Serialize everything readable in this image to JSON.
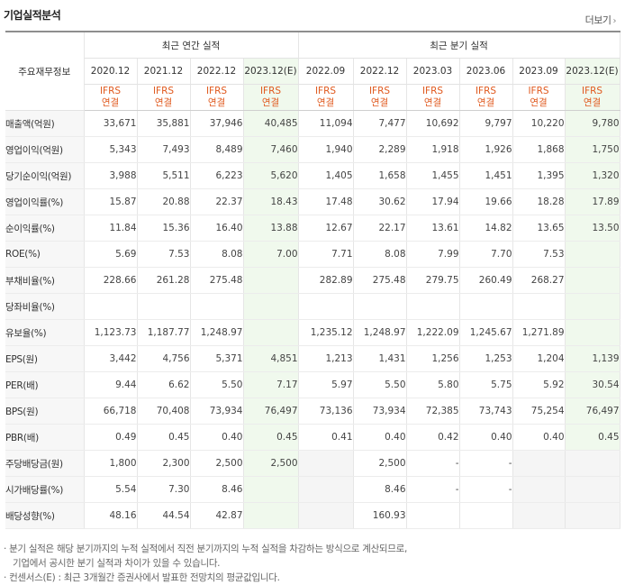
{
  "title": "기업실적분석",
  "more_label": "더보기",
  "header": {
    "corner_label": "주요재무정보",
    "annual_label": "최근 연간 실적",
    "quarter_label": "최근 분기 실적",
    "annual_periods": [
      "2020.12",
      "2021.12",
      "2022.12",
      "2023.12(E)"
    ],
    "quarter_periods": [
      "2022.09",
      "2022.12",
      "2023.03",
      "2023.06",
      "2023.09",
      "2023.12(E)"
    ],
    "ifrs_line1": "IFRS",
    "ifrs_line2": "연결"
  },
  "rows": [
    {
      "label": "매출액(억원)",
      "values": [
        "33,671",
        "35,881",
        "37,946",
        "40,485",
        "11,094",
        "7,477",
        "10,692",
        "9,797",
        "10,220",
        "9,780"
      ]
    },
    {
      "label": "영업이익(억원)",
      "values": [
        "5,343",
        "7,493",
        "8,489",
        "7,460",
        "1,940",
        "2,289",
        "1,918",
        "1,926",
        "1,868",
        "1,750"
      ]
    },
    {
      "label": "당기순이익(억원)",
      "values": [
        "3,988",
        "5,511",
        "6,223",
        "5,620",
        "1,405",
        "1,658",
        "1,455",
        "1,451",
        "1,395",
        "1,320"
      ]
    },
    {
      "label": "영업이익률(%)",
      "values": [
        "15.87",
        "20.88",
        "22.37",
        "18.43",
        "17.48",
        "30.62",
        "17.94",
        "19.66",
        "18.28",
        "17.89"
      ]
    },
    {
      "label": "순이익률(%)",
      "values": [
        "11.84",
        "15.36",
        "16.40",
        "13.88",
        "12.67",
        "22.17",
        "13.61",
        "14.82",
        "13.65",
        "13.50"
      ]
    },
    {
      "label": "ROE(%)",
      "values": [
        "5.69",
        "7.53",
        "8.08",
        "7.00",
        "7.71",
        "8.08",
        "7.99",
        "7.70",
        "7.53",
        ""
      ]
    },
    {
      "label": "부채비율(%)",
      "values": [
        "228.66",
        "261.28",
        "275.48",
        "",
        "282.89",
        "275.48",
        "279.75",
        "260.49",
        "268.27",
        ""
      ]
    },
    {
      "label": "당좌비율(%)",
      "values": [
        "",
        "",
        "",
        "",
        "",
        "",
        "",
        "",
        "",
        ""
      ]
    },
    {
      "label": "유보율(%)",
      "values": [
        "1,123.73",
        "1,187.77",
        "1,248.97",
        "",
        "1,235.12",
        "1,248.97",
        "1,222.09",
        "1,245.67",
        "1,271.89",
        ""
      ]
    },
    {
      "label": "EPS(원)",
      "values": [
        "3,442",
        "4,756",
        "5,371",
        "4,851",
        "1,213",
        "1,431",
        "1,256",
        "1,253",
        "1,204",
        "1,139"
      ]
    },
    {
      "label": "PER(배)",
      "values": [
        "9.44",
        "6.62",
        "5.50",
        "7.17",
        "5.97",
        "5.50",
        "5.80",
        "5.75",
        "5.92",
        "30.54"
      ]
    },
    {
      "label": "BPS(원)",
      "values": [
        "66,718",
        "70,408",
        "73,934",
        "76,497",
        "73,136",
        "73,934",
        "72,385",
        "73,743",
        "75,254",
        "76,497"
      ]
    },
    {
      "label": "PBR(배)",
      "values": [
        "0.49",
        "0.45",
        "0.40",
        "0.45",
        "0.41",
        "0.40",
        "0.42",
        "0.40",
        "0.40",
        "0.45"
      ]
    },
    {
      "label": "주당배당금(원)",
      "values": [
        "1,800",
        "2,300",
        "2,500",
        "2,500",
        "",
        "2,500",
        "-",
        "-",
        "",
        ""
      ]
    },
    {
      "label": "시가배당률(%)",
      "values": [
        "5.54",
        "7.30",
        "8.46",
        "",
        "",
        "8.46",
        "-",
        "-",
        "",
        ""
      ]
    },
    {
      "label": "배당성향(%)",
      "values": [
        "48.16",
        "44.54",
        "42.87",
        "",
        "",
        "160.93",
        "",
        "",
        "",
        ""
      ]
    }
  ],
  "notes": [
    "· 분기 실적은 해당 분기까지의 누적 실적에서 직전 분기까지의 누적 실적을 차감하는 방식으로 계산되므로,",
    "기업에서 공시한 분기 실적과 차이가 있을 수 있습니다.",
    "· 컨센서스(E) : 최근 3개월간 증권사에서 발표한 전망치의 평균값입니다."
  ]
}
